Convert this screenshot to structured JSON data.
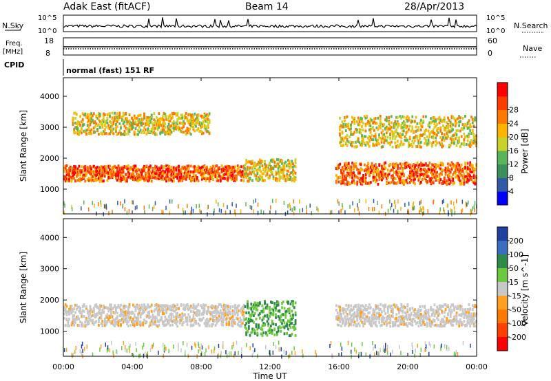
{
  "header": {
    "station": "Adak East (fitACF)",
    "beam": "Beam 14",
    "date": "28/Apr/2013"
  },
  "params": {
    "nsky_label": "N.Sky",
    "nsky_ticks": [
      "10^5",
      "10^0"
    ],
    "nsearch_label": "N.Search",
    "nsearch_ticks": [
      "10^5",
      "10^0"
    ],
    "freq_label": "Freq.",
    "freq_unit": "[MHz]",
    "freq_ticks": [
      "18",
      "8"
    ],
    "nave_label": "Nave",
    "nave_ticks": [
      "60",
      "0"
    ],
    "cpid_label": "CPID",
    "cpid_text": "normal (fast) 151 RF"
  },
  "colors": {
    "power_scale": [
      "#0000ff",
      "#2e5aa8",
      "#3c8f5a",
      "#5ab45a",
      "#c8d228",
      "#ffb400",
      "#ff7800",
      "#ff3c00",
      "#ff0000"
    ],
    "velocity_scale": [
      "#2040a0",
      "#3a6ec0",
      "#2e8a4a",
      "#6cc83c",
      "#c8c8c8",
      "#ffa020",
      "#ff7800",
      "#ff4000",
      "#ff0000"
    ]
  },
  "chart_data": [
    {
      "type": "heatmap",
      "panel": "power",
      "xlabel": "",
      "ylabel": "Slant Range [km]",
      "yticks": [
        "1000",
        "2000",
        "3000",
        "4000"
      ],
      "ylim": [
        200,
        4600
      ],
      "xlim": [
        "00:00",
        "24:00"
      ],
      "colorbar_label": "Power [dB]",
      "colorbar_ticks": [
        "4",
        "8",
        "12",
        "16",
        "20",
        "24",
        "28"
      ],
      "features": [
        {
          "name": "main_band_morning",
          "x_hours": [
            0,
            10.5
          ],
          "range_km": [
            1300,
            1800
          ],
          "power_db": 26
        },
        {
          "name": "main_band_evening",
          "x_hours": [
            15.8,
            24
          ],
          "range_km": [
            1200,
            1900
          ],
          "power_db": 26
        },
        {
          "name": "upper_band_morning",
          "x_hours": [
            0.5,
            8.5
          ],
          "range_km": [
            2800,
            3500
          ],
          "power_db": 18
        },
        {
          "name": "upper_band_evening",
          "x_hours": [
            16,
            24
          ],
          "range_km": [
            2400,
            3400
          ],
          "power_db": 16
        },
        {
          "name": "midday_patch",
          "x_hours": [
            10.5,
            13.5
          ],
          "range_km": [
            1300,
            2000
          ],
          "power_db": 18
        }
      ]
    },
    {
      "type": "heatmap",
      "panel": "velocity",
      "xlabel": "Time UT",
      "ylabel": "Slant Range [km]",
      "xticks": [
        "00:00",
        "04:00",
        "08:00",
        "12:00",
        "16:00",
        "20:00",
        "00:00"
      ],
      "yticks": [
        "1000",
        "2000",
        "3000",
        "4000"
      ],
      "ylim": [
        200,
        4600
      ],
      "colorbar_label": "Velocity [m s^-1]",
      "colorbar_ticks": [
        "200",
        "100",
        "50",
        "15",
        "-15",
        "-50",
        "-100",
        "-200"
      ],
      "features": [
        {
          "name": "ground_scatter_morning",
          "x_hours": [
            0,
            10.5
          ],
          "range_km": [
            1200,
            1900
          ],
          "velocity_ms": 0
        },
        {
          "name": "ground_scatter_evening",
          "x_hours": [
            15.8,
            24
          ],
          "range_km": [
            1200,
            1900
          ],
          "velocity_ms": 0
        },
        {
          "name": "midday_patch",
          "x_hours": [
            10.5,
            13.5
          ],
          "range_km": [
            900,
            2000
          ],
          "velocity_ms": 60
        }
      ]
    }
  ]
}
